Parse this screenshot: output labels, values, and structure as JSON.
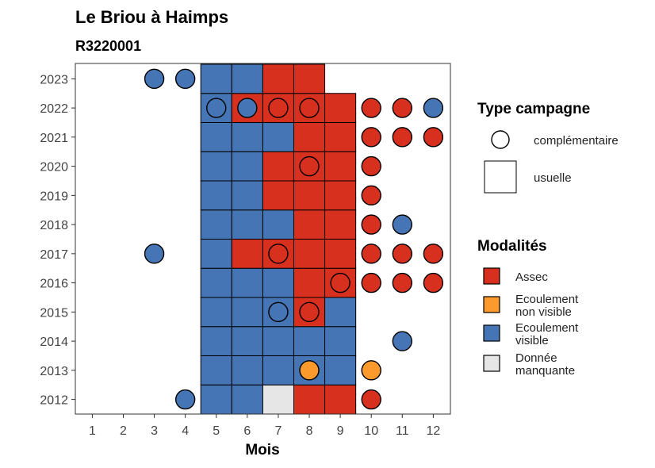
{
  "chart_data": {
    "type": "heatmap",
    "title": "Le Briou à Haimps",
    "subtitle": "R3220001",
    "xlabel": "Mois",
    "ylabel": "",
    "x_ticks": [
      "1",
      "2",
      "3",
      "4",
      "5",
      "6",
      "7",
      "8",
      "9",
      "10",
      "11",
      "12"
    ],
    "y_ticks": [
      "2012",
      "2013",
      "2014",
      "2015",
      "2016",
      "2017",
      "2018",
      "2019",
      "2020",
      "2021",
      "2022",
      "2023"
    ],
    "grid": false,
    "colors": {
      "Assec": "#d7301f",
      "Ecoulement non visible": "#fd9a2e",
      "Ecoulement visible": "#4575b4",
      "Donnée manquante": "#e6e6e6"
    },
    "usuelle": {
      "2023": {
        "5": "Ecoulement visible",
        "6": "Ecoulement visible",
        "7": "Assec",
        "8": "Assec"
      },
      "2022": {
        "5": "Ecoulement visible",
        "6": "Assec",
        "7": "Assec",
        "8": "Assec",
        "9": "Assec"
      },
      "2021": {
        "5": "Ecoulement visible",
        "6": "Ecoulement visible",
        "7": "Ecoulement visible",
        "8": "Assec",
        "9": "Assec"
      },
      "2020": {
        "5": "Ecoulement visible",
        "6": "Ecoulement visible",
        "7": "Assec",
        "8": "Assec",
        "9": "Assec"
      },
      "2019": {
        "5": "Ecoulement visible",
        "6": "Ecoulement visible",
        "7": "Assec",
        "8": "Assec",
        "9": "Assec"
      },
      "2018": {
        "5": "Ecoulement visible",
        "6": "Ecoulement visible",
        "7": "Ecoulement visible",
        "8": "Assec",
        "9": "Assec"
      },
      "2017": {
        "5": "Ecoulement visible",
        "6": "Assec",
        "7": "Assec",
        "8": "Assec",
        "9": "Assec"
      },
      "2016": {
        "5": "Ecoulement visible",
        "6": "Ecoulement visible",
        "7": "Ecoulement visible",
        "8": "Assec",
        "9": "Assec"
      },
      "2015": {
        "5": "Ecoulement visible",
        "6": "Ecoulement visible",
        "7": "Ecoulement visible",
        "8": "Assec",
        "9": "Ecoulement visible"
      },
      "2014": {
        "5": "Ecoulement visible",
        "6": "Ecoulement visible",
        "7": "Ecoulement visible",
        "8": "Ecoulement visible",
        "9": "Ecoulement visible"
      },
      "2013": {
        "5": "Ecoulement visible",
        "6": "Ecoulement visible",
        "7": "Ecoulement visible",
        "8": "Ecoulement visible",
        "9": "Ecoulement visible"
      },
      "2012": {
        "5": "Ecoulement visible",
        "6": "Ecoulement visible",
        "7": "Donnée manquante",
        "8": "Assec",
        "9": "Assec"
      }
    },
    "complementaire": [
      {
        "year": "2023",
        "month": 3,
        "modalite": "Ecoulement visible"
      },
      {
        "year": "2023",
        "month": 4,
        "modalite": "Ecoulement visible"
      },
      {
        "year": "2022",
        "month": 5,
        "modalite": "Ecoulement visible"
      },
      {
        "year": "2022",
        "month": 6,
        "modalite": "Ecoulement visible"
      },
      {
        "year": "2022",
        "month": 7,
        "modalite": "Assec"
      },
      {
        "year": "2022",
        "month": 8,
        "modalite": "Assec"
      },
      {
        "year": "2022",
        "month": 10,
        "modalite": "Assec"
      },
      {
        "year": "2022",
        "month": 11,
        "modalite": "Assec"
      },
      {
        "year": "2022",
        "month": 12,
        "modalite": "Ecoulement visible"
      },
      {
        "year": "2021",
        "month": 10,
        "modalite": "Assec"
      },
      {
        "year": "2021",
        "month": 11,
        "modalite": "Assec"
      },
      {
        "year": "2021",
        "month": 12,
        "modalite": "Assec"
      },
      {
        "year": "2020",
        "month": 8,
        "modalite": "Assec"
      },
      {
        "year": "2020",
        "month": 10,
        "modalite": "Assec"
      },
      {
        "year": "2019",
        "month": 10,
        "modalite": "Assec"
      },
      {
        "year": "2018",
        "month": 10,
        "modalite": "Assec"
      },
      {
        "year": "2018",
        "month": 11,
        "modalite": "Ecoulement visible"
      },
      {
        "year": "2017",
        "month": 3,
        "modalite": "Ecoulement visible"
      },
      {
        "year": "2017",
        "month": 7,
        "modalite": "Assec"
      },
      {
        "year": "2017",
        "month": 10,
        "modalite": "Assec"
      },
      {
        "year": "2017",
        "month": 11,
        "modalite": "Assec"
      },
      {
        "year": "2017",
        "month": 12,
        "modalite": "Assec"
      },
      {
        "year": "2016",
        "month": 9,
        "modalite": "Assec"
      },
      {
        "year": "2016",
        "month": 10,
        "modalite": "Assec"
      },
      {
        "year": "2016",
        "month": 11,
        "modalite": "Assec"
      },
      {
        "year": "2016",
        "month": 12,
        "modalite": "Assec"
      },
      {
        "year": "2015",
        "month": 7,
        "modalite": "Ecoulement visible"
      },
      {
        "year": "2015",
        "month": 8,
        "modalite": "Assec"
      },
      {
        "year": "2014",
        "month": 11,
        "modalite": "Ecoulement visible"
      },
      {
        "year": "2013",
        "month": 8,
        "modalite": "Ecoulement non visible"
      },
      {
        "year": "2013",
        "month": 10,
        "modalite": "Ecoulement non visible"
      },
      {
        "year": "2012",
        "month": 4,
        "modalite": "Ecoulement visible"
      },
      {
        "year": "2012",
        "month": 10,
        "modalite": "Assec"
      }
    ],
    "legend": {
      "position": "right",
      "type_title": "Type campagne",
      "type_items": [
        {
          "label": "complémentaire",
          "shape": "circle"
        },
        {
          "label": "usuelle",
          "shape": "square"
        }
      ],
      "modalites_title": "Modalités",
      "modalites_items": [
        {
          "key": "Assec",
          "lines": [
            "Assec"
          ]
        },
        {
          "key": "Ecoulement non visible",
          "lines": [
            "Ecoulement",
            "non visible"
          ]
        },
        {
          "key": "Ecoulement visible",
          "lines": [
            "Ecoulement",
            "visible"
          ]
        },
        {
          "key": "Donnée manquante",
          "lines": [
            "Donnée",
            "manquante"
          ]
        }
      ]
    }
  }
}
